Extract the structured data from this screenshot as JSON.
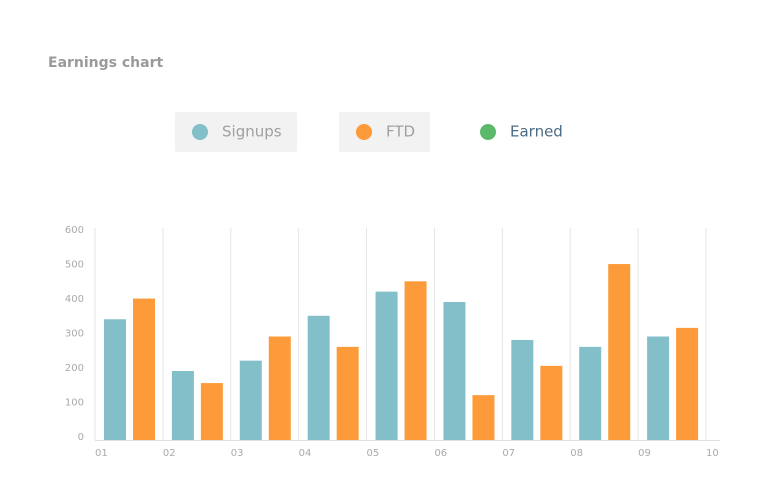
{
  "chart_data": {
    "type": "bar",
    "title": "Earnings chart",
    "categories": [
      "01",
      "02",
      "03",
      "04",
      "05",
      "06",
      "07",
      "08",
      "09",
      "10"
    ],
    "series": [
      {
        "name": "Signups",
        "color": "#82bfc8",
        "values": [
          350,
          200,
          230,
          360,
          430,
          400,
          290,
          270,
          300,
          null
        ]
      },
      {
        "name": "FTD",
        "color": "#fd9b3a",
        "values": [
          410,
          165,
          300,
          270,
          460,
          130,
          215,
          510,
          325,
          null
        ]
      },
      {
        "name": "Earned",
        "color": "#5cb86b",
        "values": [
          null,
          null,
          null,
          null,
          null,
          null,
          null,
          null,
          null,
          null
        ]
      }
    ],
    "ylim": [
      0,
      600
    ],
    "yticks": [
      0,
      100,
      200,
      300,
      400,
      500,
      600
    ],
    "grid": true
  }
}
